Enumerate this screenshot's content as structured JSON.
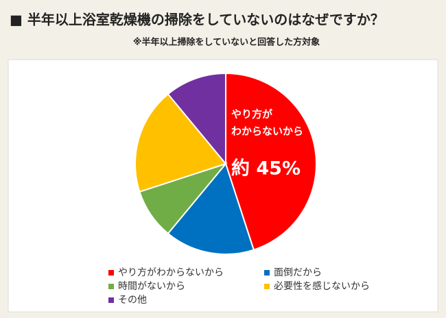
{
  "chart_data": {
    "type": "pie",
    "title": "■ 半年以上浴室乾燥機の掃除をしていないのはなぜですか？",
    "subtitle": "※半年以上掃除をしていないと回答した方対象",
    "categories": [
      "やり方がわからないから",
      "面倒だから",
      "時間がないから",
      "必要性を感じないから",
      "その他"
    ],
    "values": [
      45,
      16,
      9,
      19,
      11
    ],
    "value_labels": [
      "約 45%",
      null,
      null,
      null,
      null
    ],
    "annotation": [
      "やり方が",
      "わからないから"
    ],
    "colors": [
      "#ff0000",
      "#0070c0",
      "#70ad47",
      "#ffc000",
      "#7030a0"
    ]
  }
}
